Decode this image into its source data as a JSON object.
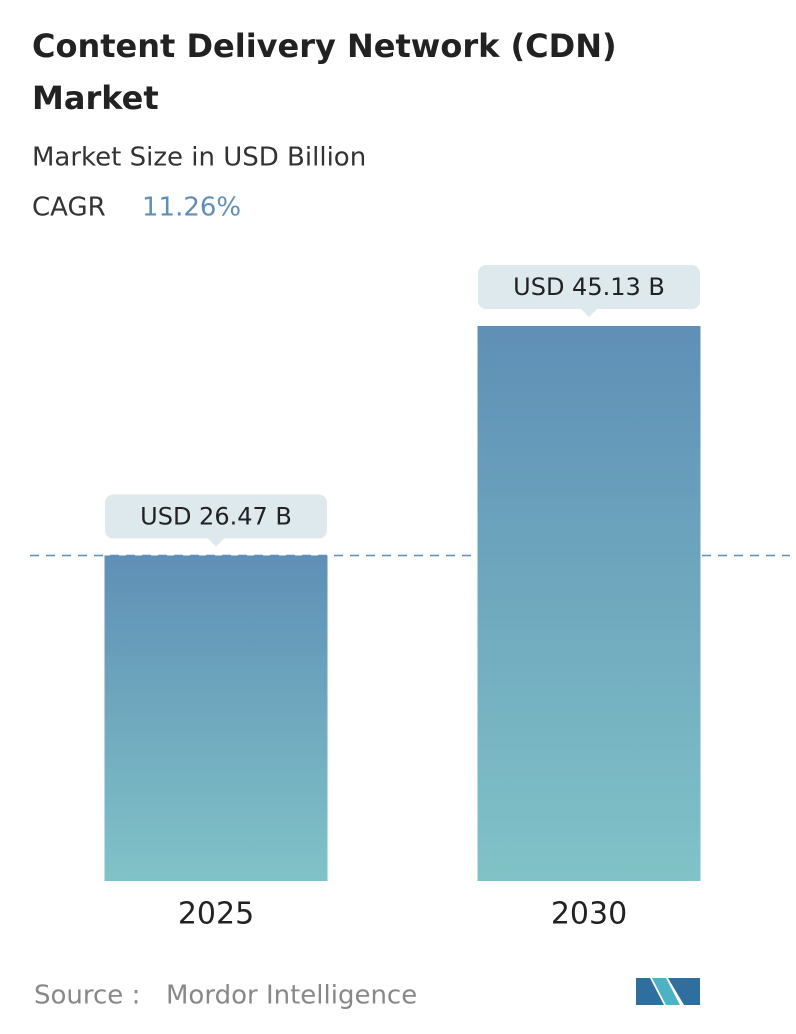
{
  "chart_data": {
    "type": "bar",
    "title": [
      "Content Delivery Network (CDN)",
      "Market"
    ],
    "subtitle": "Market Size in USD Billion",
    "cagr_label": "CAGR",
    "cagr": "11.26%",
    "categories": [
      "2025",
      "2030"
    ],
    "values": [
      26.47,
      45.13
    ],
    "value_labels": [
      "USD 26.47 B",
      "USD 45.13 B"
    ],
    "color": [
      "#5f8fb6",
      "#80c3c7"
    ],
    "source_label": "Source :",
    "source": "Mordor Intelligence"
  }
}
